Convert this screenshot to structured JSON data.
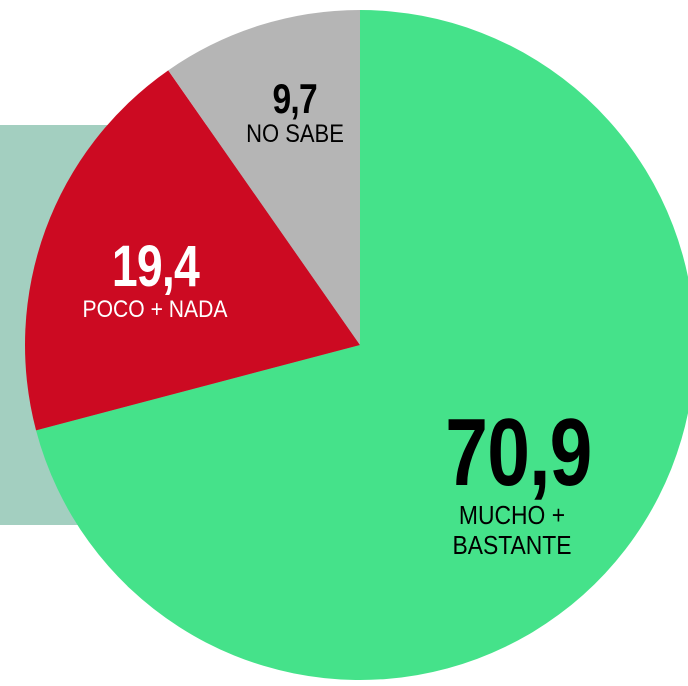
{
  "chart_data": {
    "type": "pie",
    "categories": [
      "MUCHO + BASTANTE",
      "POCO + NADA",
      "NO SABE"
    ],
    "values": [
      70.9,
      19.4,
      9.7
    ],
    "value_labels": [
      "70,9",
      "19,4",
      "9,7"
    ],
    "colors": [
      "#45e28a",
      "#cc0a22",
      "#b5b5b5"
    ]
  }
}
